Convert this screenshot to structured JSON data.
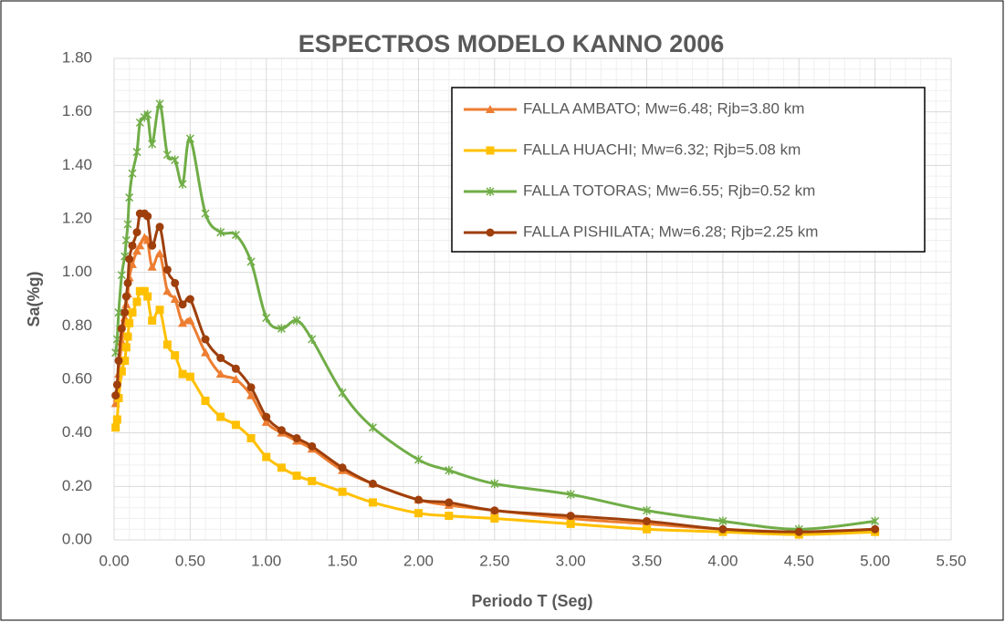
{
  "chart_data": {
    "type": "line",
    "title": "ESPECTROS MODELO KANNO 2006",
    "x_label": "Periodo T (Seg)",
    "y_label": "Sa(%g)",
    "x": [
      0.01,
      0.02,
      0.03,
      0.05,
      0.07,
      0.08,
      0.09,
      0.1,
      0.12,
      0.15,
      0.17,
      0.2,
      0.22,
      0.25,
      0.3,
      0.35,
      0.4,
      0.45,
      0.5,
      0.6,
      0.7,
      0.8,
      0.9,
      1.0,
      1.1,
      1.2,
      1.3,
      1.5,
      1.7,
      2.0,
      2.2,
      2.5,
      3.0,
      3.5,
      4.0,
      4.5,
      5.0
    ],
    "series": [
      {
        "name": "FALLA AMBATO; Mw=6.48; Rjb=3.80 km",
        "color": "#ED7D31",
        "marker": "triangle",
        "values": [
          0.51,
          0.53,
          0.62,
          0.74,
          0.83,
          0.88,
          0.92,
          0.98,
          1.03,
          1.08,
          1.1,
          1.13,
          1.12,
          1.02,
          1.07,
          0.93,
          0.9,
          0.81,
          0.82,
          0.7,
          0.62,
          0.6,
          0.54,
          0.44,
          0.4,
          0.37,
          0.34,
          0.26,
          0.21,
          0.15,
          0.13,
          0.11,
          0.08,
          0.06,
          0.04,
          0.03,
          0.04
        ]
      },
      {
        "name": "FALLA HUACHI; Mw=6.32; Rjb=5.08 km",
        "color": "#FFC000",
        "marker": "square",
        "values": [
          0.42,
          0.45,
          0.53,
          0.63,
          0.67,
          0.72,
          0.76,
          0.81,
          0.85,
          0.89,
          0.93,
          0.93,
          0.91,
          0.82,
          0.86,
          0.73,
          0.69,
          0.62,
          0.61,
          0.52,
          0.46,
          0.43,
          0.38,
          0.31,
          0.27,
          0.24,
          0.22,
          0.18,
          0.14,
          0.1,
          0.09,
          0.08,
          0.06,
          0.04,
          0.03,
          0.02,
          0.03
        ]
      },
      {
        "name": "FALLA TOTORAS; Mw=6.55; Rjb=0.52 km",
        "color": "#70AD47",
        "marker": "star",
        "values": [
          0.7,
          0.75,
          0.85,
          0.99,
          1.06,
          1.12,
          1.18,
          1.28,
          1.37,
          1.45,
          1.56,
          1.58,
          1.59,
          1.48,
          1.63,
          1.44,
          1.42,
          1.33,
          1.5,
          1.22,
          1.15,
          1.14,
          1.04,
          0.83,
          0.79,
          0.82,
          0.75,
          0.55,
          0.42,
          0.3,
          0.26,
          0.21,
          0.17,
          0.11,
          0.07,
          0.04,
          0.07
        ]
      },
      {
        "name": "FALLA PISHILATA; Mw=6.28; Rjb=2.25 km",
        "color": "#9E3F0C",
        "marker": "circle",
        "values": [
          0.54,
          0.58,
          0.67,
          0.79,
          0.85,
          0.91,
          0.96,
          1.05,
          1.1,
          1.15,
          1.22,
          1.22,
          1.21,
          1.1,
          1.17,
          1.01,
          0.96,
          0.88,
          0.9,
          0.75,
          0.68,
          0.64,
          0.57,
          0.46,
          0.41,
          0.38,
          0.35,
          0.27,
          0.21,
          0.15,
          0.14,
          0.11,
          0.09,
          0.07,
          0.04,
          0.03,
          0.04
        ]
      }
    ],
    "xlim": [
      0,
      5.5
    ],
    "xticks": [
      {
        "value": 0,
        "label": "0.00"
      },
      {
        "value": 0.5,
        "label": "0.50"
      },
      {
        "value": 1,
        "label": "1.00"
      },
      {
        "value": 1.5,
        "label": "1.50"
      },
      {
        "value": 2,
        "label": "2.00"
      },
      {
        "value": 2.5,
        "label": "2.50"
      },
      {
        "value": 3,
        "label": "3.00"
      },
      {
        "value": 3.5,
        "label": "3.50"
      },
      {
        "value": 4,
        "label": "4.00"
      },
      {
        "value": 4.5,
        "label": "4.50"
      },
      {
        "value": 5,
        "label": "5.00"
      },
      {
        "value": 5.5,
        "label": "5.50"
      }
    ],
    "ylim": [
      0,
      1.8
    ],
    "yticks": [
      {
        "value": 0,
        "label": "0.00"
      },
      {
        "value": 0.2,
        "label": "0.20"
      },
      {
        "value": 0.4,
        "label": "0.40"
      },
      {
        "value": 0.6,
        "label": "0.60"
      },
      {
        "value": 0.8,
        "label": "0.80"
      },
      {
        "value": 1,
        "label": "1.00"
      },
      {
        "value": 1.2,
        "label": "1.20"
      },
      {
        "value": 1.4,
        "label": "1.40"
      },
      {
        "value": 1.6,
        "label": "1.60"
      },
      {
        "value": 1.8,
        "label": "1.80"
      }
    ],
    "grid": true,
    "smooth": true,
    "legend": "upper right"
  }
}
